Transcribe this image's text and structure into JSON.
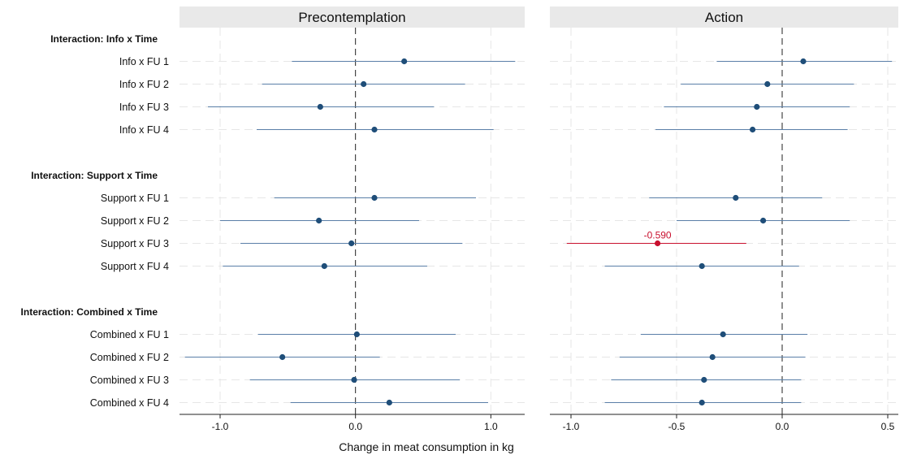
{
  "chart_data": {
    "type": "scatter",
    "xlabel": "Change in meat consumption in kg",
    "rows": [
      {
        "kind": "group",
        "label": "Interaction: Info x Time"
      },
      {
        "kind": "item",
        "label": "Info x FU 1"
      },
      {
        "kind": "item",
        "label": "Info x FU 2"
      },
      {
        "kind": "item",
        "label": "Info x FU 3"
      },
      {
        "kind": "item",
        "label": "Info x FU 4"
      },
      {
        "kind": "gap",
        "label": ""
      },
      {
        "kind": "group",
        "label": "Interaction: Support x Time"
      },
      {
        "kind": "item",
        "label": "Support x FU 1"
      },
      {
        "kind": "item",
        "label": "Support x FU 2"
      },
      {
        "kind": "item",
        "label": "Support x FU 3"
      },
      {
        "kind": "item",
        "label": "Support x FU 4"
      },
      {
        "kind": "gap",
        "label": ""
      },
      {
        "kind": "group",
        "label": "Interaction: Combined x Time"
      },
      {
        "kind": "item",
        "label": "Combined x FU 1"
      },
      {
        "kind": "item",
        "label": "Combined x FU 2"
      },
      {
        "kind": "item",
        "label": "Combined x FU 3"
      },
      {
        "kind": "item",
        "label": "Combined x FU 4"
      }
    ],
    "panels": [
      {
        "title": "Precontemplation",
        "xlim": [
          -1.3,
          1.25
        ],
        "xticks": [
          -1.0,
          0.0,
          1.0
        ],
        "xtick_labels": [
          "-1.0",
          "0.0",
          "1.0"
        ],
        "points": [
          {
            "row": "Info x FU 1",
            "est": 0.36,
            "lo": -0.47,
            "hi": 1.18,
            "sig": false
          },
          {
            "row": "Info x FU 2",
            "est": 0.06,
            "lo": -0.69,
            "hi": 0.81,
            "sig": false
          },
          {
            "row": "Info x FU 3",
            "est": -0.26,
            "lo": -1.09,
            "hi": 0.58,
            "sig": false
          },
          {
            "row": "Info x FU 4",
            "est": 0.14,
            "lo": -0.73,
            "hi": 1.02,
            "sig": false
          },
          {
            "row": "Support x FU 1",
            "est": 0.14,
            "lo": -0.6,
            "hi": 0.89,
            "sig": false
          },
          {
            "row": "Support x FU 2",
            "est": -0.27,
            "lo": -1.0,
            "hi": 0.47,
            "sig": false
          },
          {
            "row": "Support x FU 3",
            "est": -0.03,
            "lo": -0.85,
            "hi": 0.79,
            "sig": false
          },
          {
            "row": "Support x FU 4",
            "est": -0.23,
            "lo": -0.98,
            "hi": 0.53,
            "sig": false
          },
          {
            "row": "Combined x FU 1",
            "est": 0.01,
            "lo": -0.72,
            "hi": 0.74,
            "sig": false
          },
          {
            "row": "Combined x FU 2",
            "est": -0.54,
            "lo": -1.26,
            "hi": 0.18,
            "sig": false
          },
          {
            "row": "Combined x FU 3",
            "est": -0.01,
            "lo": -0.78,
            "hi": 0.77,
            "sig": false
          },
          {
            "row": "Combined x FU 4",
            "est": 0.25,
            "lo": -0.48,
            "hi": 0.98,
            "sig": false
          }
        ]
      },
      {
        "title": "Action",
        "xlim": [
          -1.1,
          0.55
        ],
        "xticks": [
          -1.0,
          -0.5,
          0.0,
          0.5
        ],
        "xtick_labels": [
          "-1.0",
          "-0.5",
          "0.0",
          "0.5"
        ],
        "points": [
          {
            "row": "Info x FU 1",
            "est": 0.1,
            "lo": -0.31,
            "hi": 0.52,
            "sig": false
          },
          {
            "row": "Info x FU 2",
            "est": -0.07,
            "lo": -0.48,
            "hi": 0.34,
            "sig": false
          },
          {
            "row": "Info x FU 3",
            "est": -0.12,
            "lo": -0.56,
            "hi": 0.32,
            "sig": false
          },
          {
            "row": "Info x FU 4",
            "est": -0.14,
            "lo": -0.6,
            "hi": 0.31,
            "sig": false
          },
          {
            "row": "Support x FU 1",
            "est": -0.22,
            "lo": -0.63,
            "hi": 0.19,
            "sig": false
          },
          {
            "row": "Support x FU 2",
            "est": -0.09,
            "lo": -0.5,
            "hi": 0.32,
            "sig": false
          },
          {
            "row": "Support x FU 3",
            "est": -0.59,
            "lo": -1.02,
            "hi": -0.17,
            "sig": true,
            "label": "-0.590"
          },
          {
            "row": "Support x FU 4",
            "est": -0.38,
            "lo": -0.84,
            "hi": 0.08,
            "sig": false
          },
          {
            "row": "Combined x FU 1",
            "est": -0.28,
            "lo": -0.67,
            "hi": 0.12,
            "sig": false
          },
          {
            "row": "Combined x FU 2",
            "est": -0.33,
            "lo": -0.77,
            "hi": 0.11,
            "sig": false
          },
          {
            "row": "Combined x FU 3",
            "est": -0.37,
            "lo": -0.81,
            "hi": 0.09,
            "sig": false
          },
          {
            "row": "Combined x FU 4",
            "est": -0.38,
            "lo": -0.84,
            "hi": 0.09,
            "sig": false
          }
        ]
      }
    ],
    "colors": {
      "point": "#1f4e79",
      "ci_line": "#5a7fa8",
      "significant": "#c8102e",
      "panel_header": "#e9e9e9",
      "grid": "#e6e6e6"
    }
  }
}
